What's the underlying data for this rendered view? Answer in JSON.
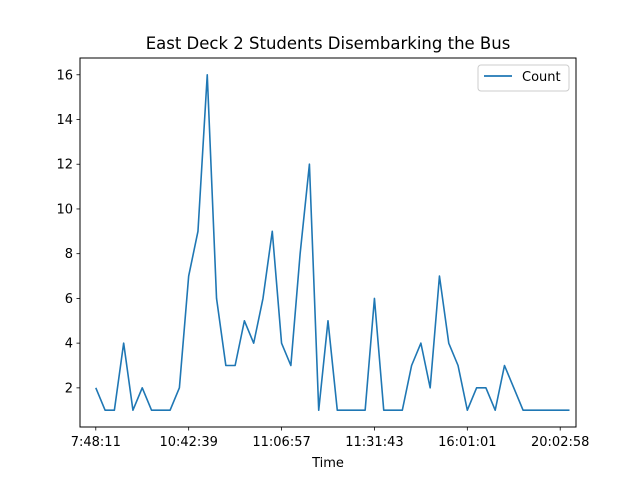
{
  "chart_data": {
    "type": "line",
    "title": "East Deck 2 Students Disembarking the Bus",
    "xlabel": "Time",
    "ylabel": "",
    "x_tick_labels": [
      {
        "index": 0,
        "label": "7:48:11"
      },
      {
        "index": 10,
        "label": "10:42:39"
      },
      {
        "index": 20,
        "label": "11:06:57"
      },
      {
        "index": 30,
        "label": "11:31:43"
      },
      {
        "index": 40,
        "label": "16:01:01"
      },
      {
        "index": 50,
        "label": "20:02:58"
      }
    ],
    "y_ticks": [
      2,
      4,
      6,
      8,
      10,
      12,
      14,
      16
    ],
    "xlim": [
      -1.7,
      51.7
    ],
    "ylim": [
      0.25,
      16.75
    ],
    "grid": false,
    "legend_position": "top-right",
    "series": [
      {
        "name": "Count",
        "color": "#1f77b4",
        "values": [
          2,
          1,
          1,
          4,
          1,
          2,
          1,
          1,
          1,
          2,
          7,
          9,
          16,
          6,
          3,
          3,
          5,
          4,
          6,
          9,
          4,
          3,
          8,
          12,
          1,
          5,
          1,
          1,
          1,
          1,
          6,
          1,
          1,
          1,
          3,
          4,
          2,
          7,
          4,
          3,
          1,
          2,
          2,
          1,
          3,
          2,
          1,
          1,
          1,
          1,
          1,
          1
        ]
      }
    ]
  }
}
